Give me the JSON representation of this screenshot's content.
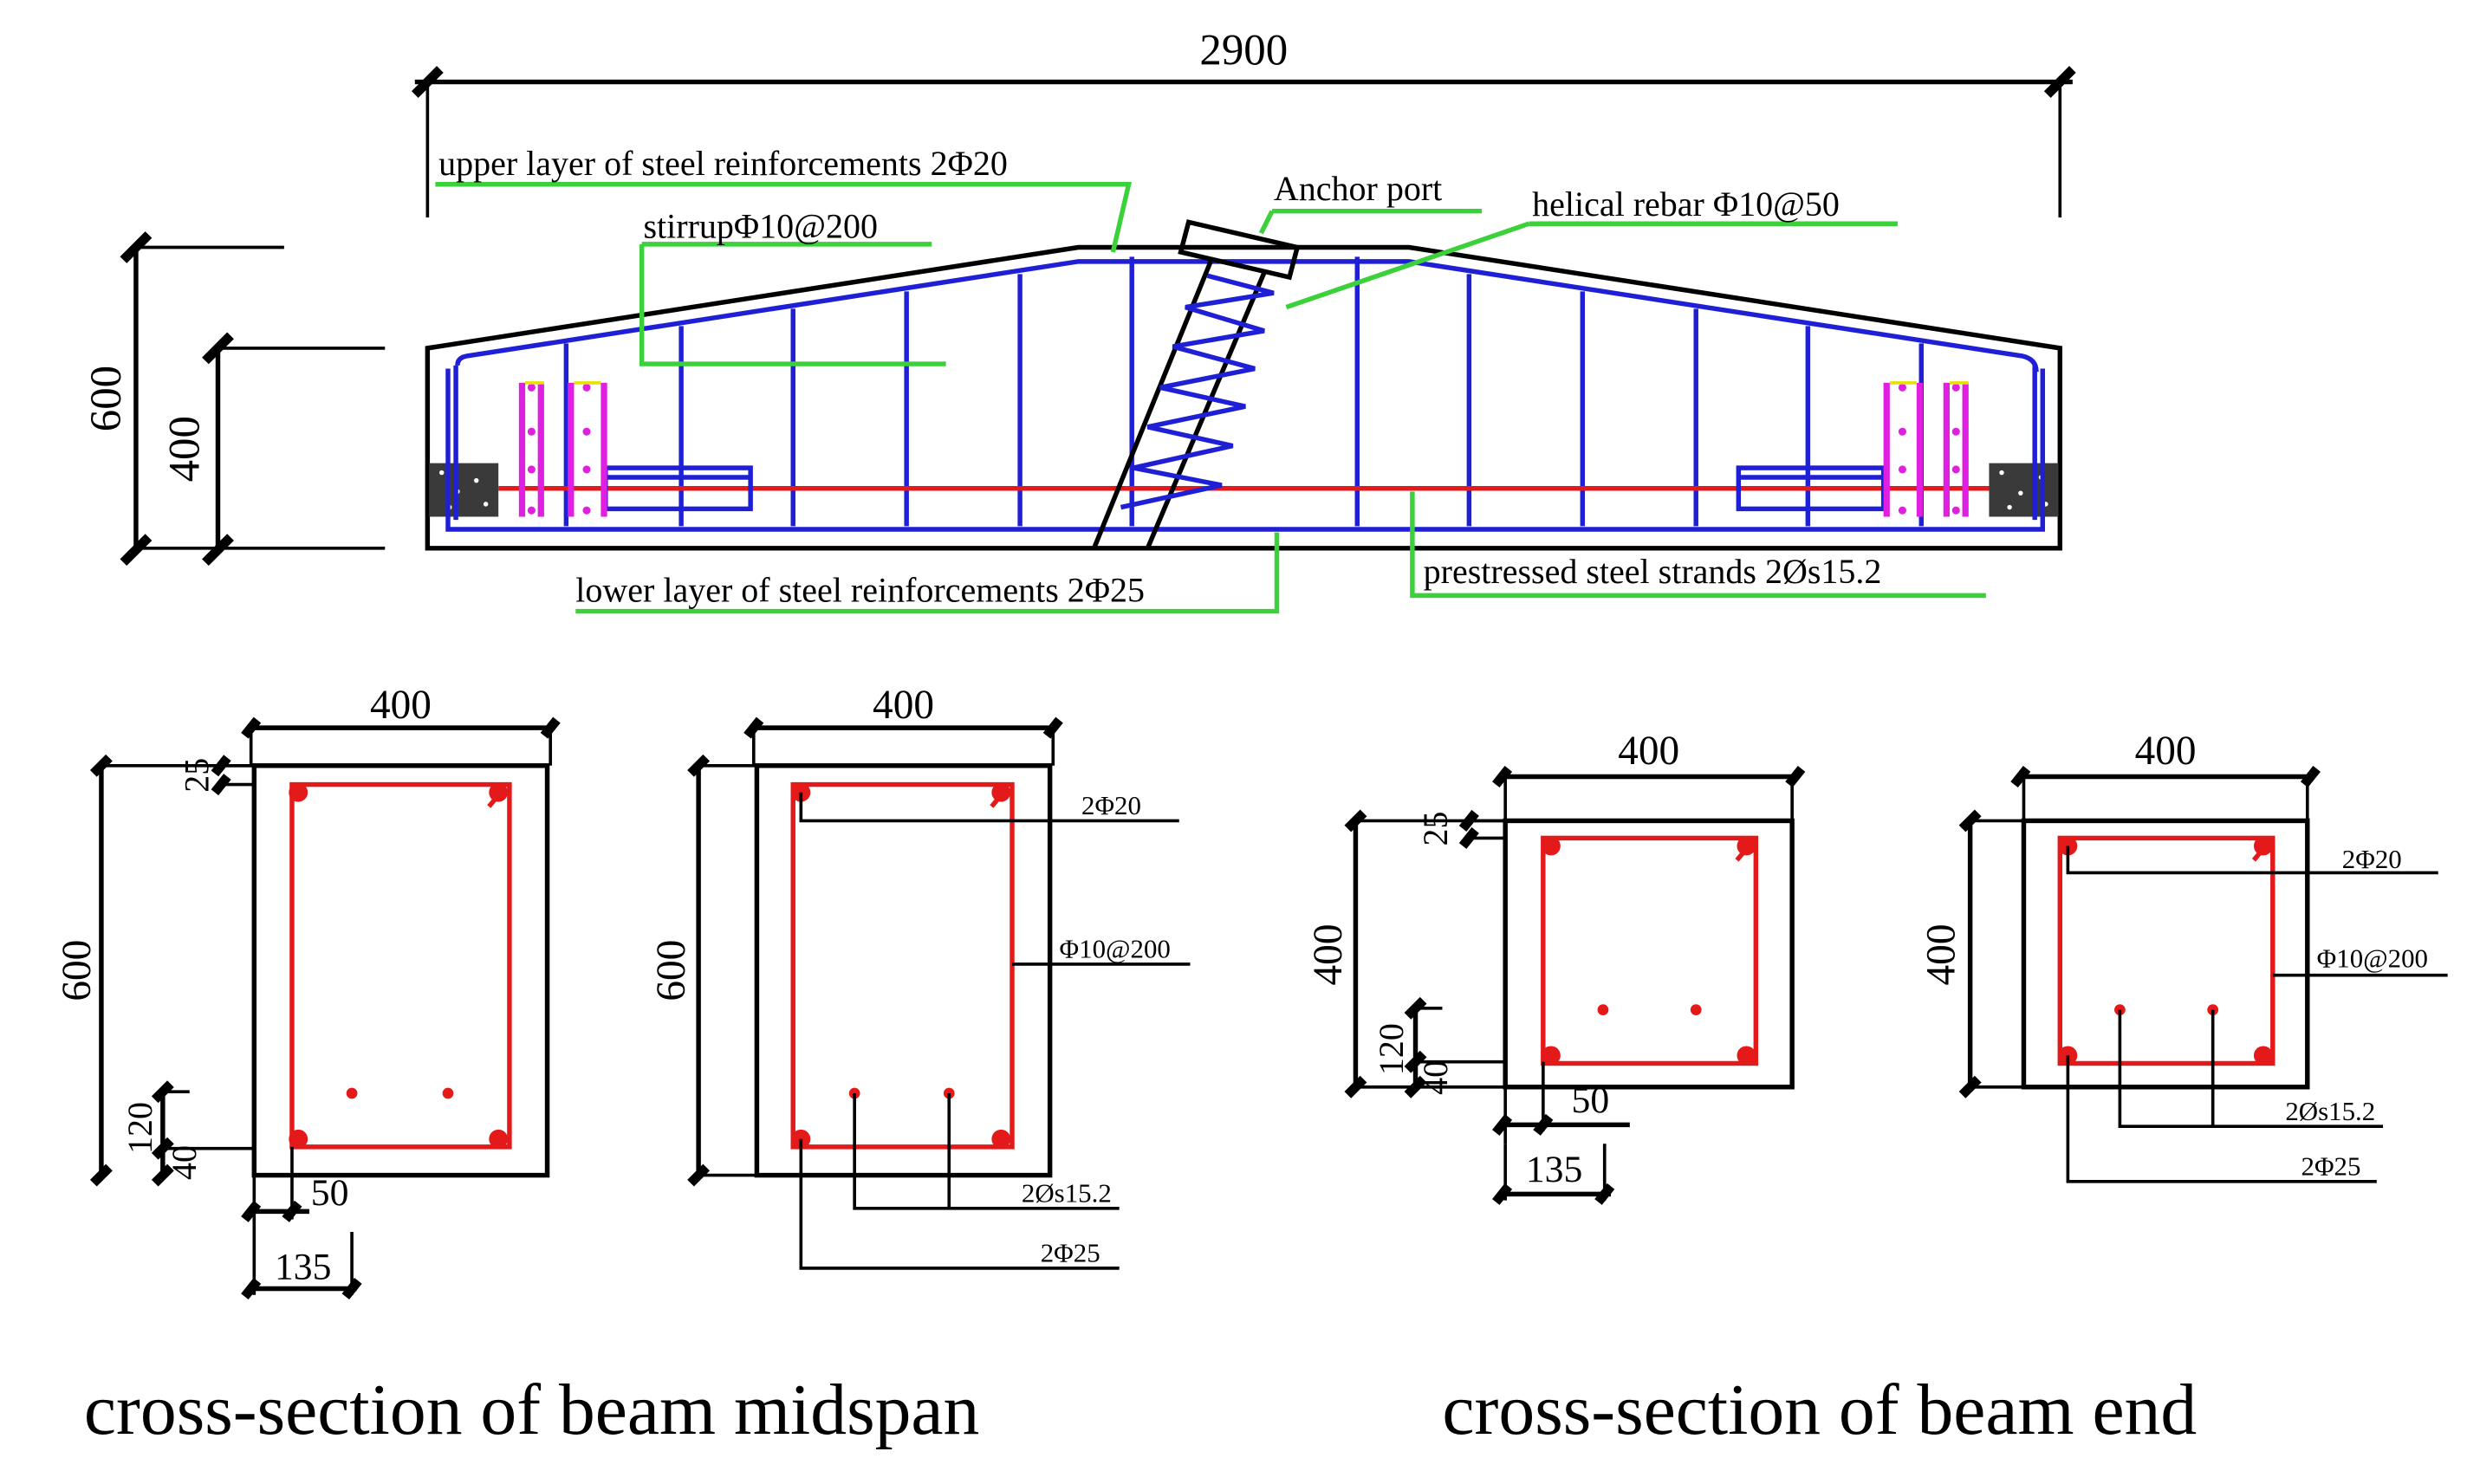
{
  "elevation": {
    "total_length": "2900",
    "height_mid": "600",
    "height_end": "400",
    "labels": {
      "upper_rebar": "upper layer of steel reinforcements 2Φ20",
      "stirrup": "stirrupΦ10@200",
      "anchor": "Anchor port",
      "helical": "helical rebar Φ10@50",
      "lower_rebar": "lower layer of steel reinforcements 2Φ25",
      "strands": "prestressed steel strands 2Øs15.2"
    }
  },
  "midspan": {
    "caption": "cross-section of beam midspan",
    "width": "400",
    "height": "600",
    "cover_top": "25",
    "dim_120": "120",
    "dim_40": "40",
    "dim_50": "50",
    "dim_135": "135",
    "top_bars": "2Φ20",
    "stirrup": "Φ10@200",
    "strands": "2Øs15.2",
    "bottom_bars": "2Φ25"
  },
  "end": {
    "caption": "cross-section of beam end",
    "width": "400",
    "height": "400",
    "cover_top": "25",
    "dim_120": "120",
    "dim_40": "40",
    "dim_50": "50",
    "dim_135": "135",
    "top_bars": "2Φ20",
    "stirrup": "Φ10@200",
    "strands": "2Øs15.2",
    "bottom_bars": "2Φ25"
  }
}
